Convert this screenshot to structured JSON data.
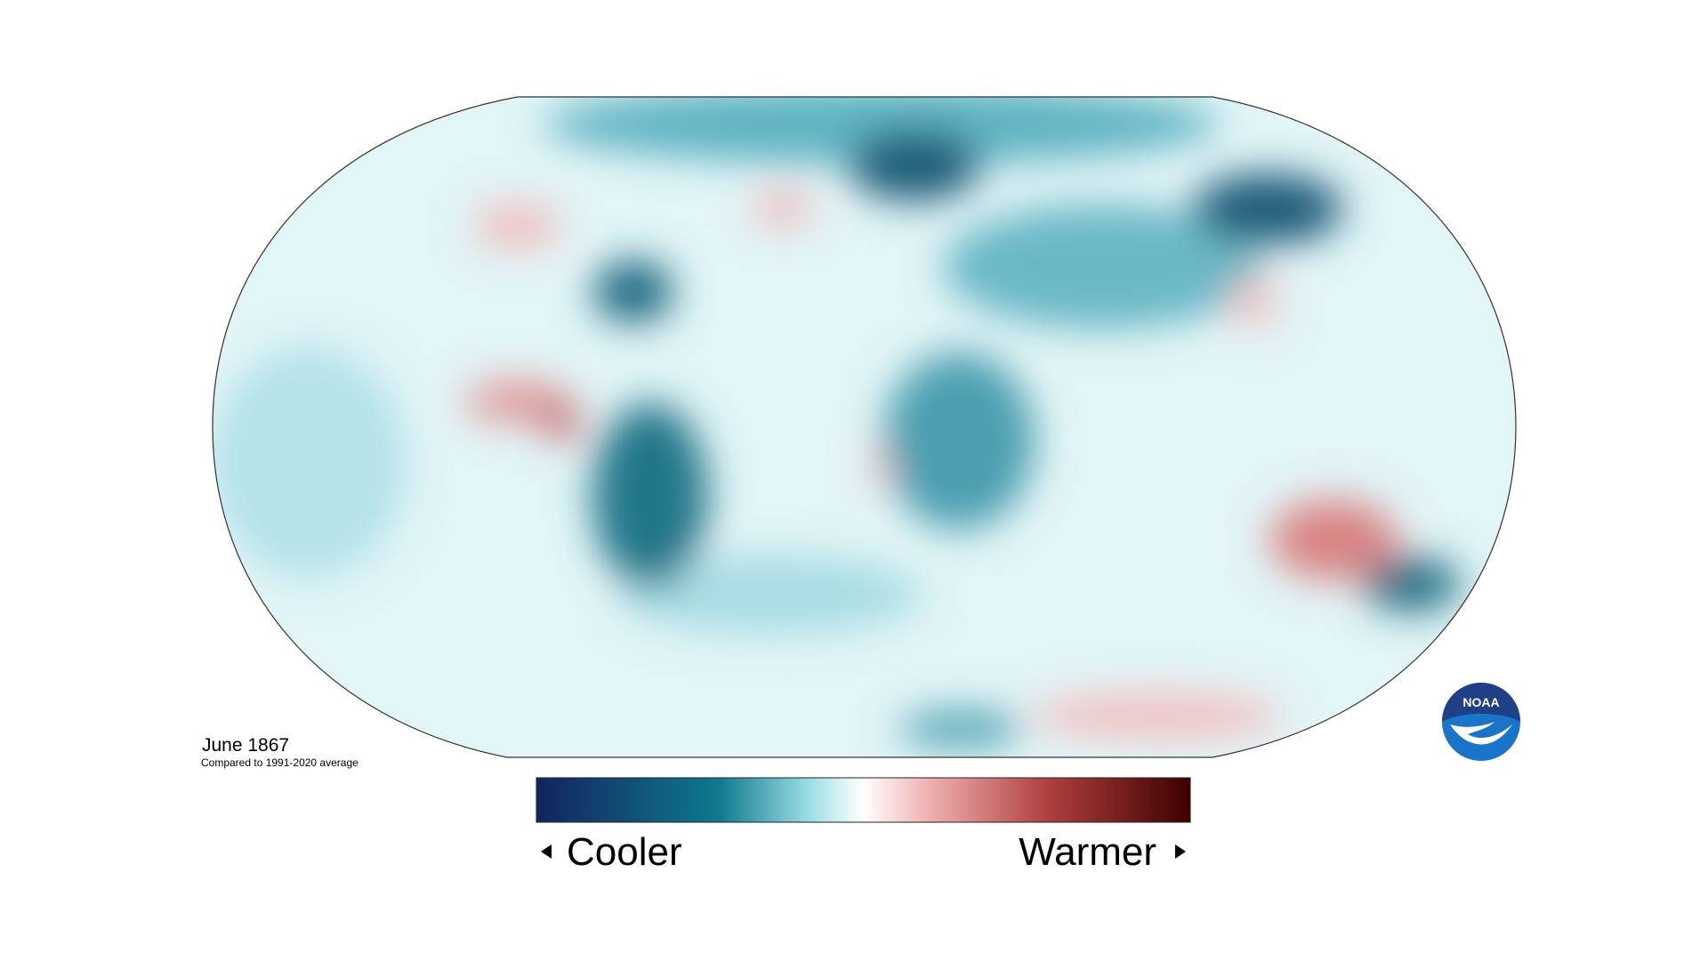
{
  "date": "June 1867",
  "subtitle": "Compared to 1991-2020 average",
  "legend": {
    "low": "Cooler",
    "high": "Warmer"
  },
  "logo": "NOAA"
}
